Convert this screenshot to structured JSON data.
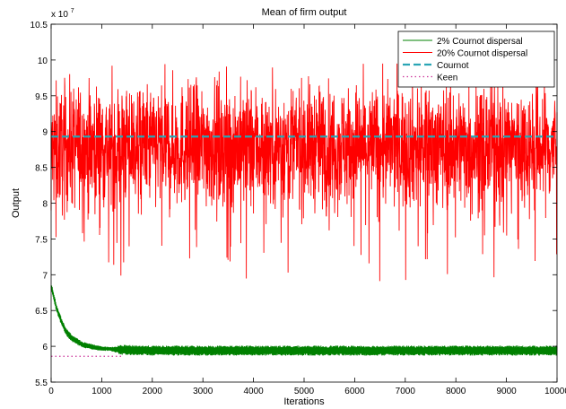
{
  "chart_data": {
    "type": "line",
    "title": "Mean of firm output",
    "xlabel": "Iterations",
    "ylabel": "Output",
    "y_multiplier_label": "x 10",
    "y_multiplier_exponent": "7",
    "xlim": [
      0,
      10000
    ],
    "ylim": [
      5.5,
      10.5
    ],
    "x_ticks": [
      0,
      1000,
      2000,
      3000,
      4000,
      5000,
      6000,
      7000,
      8000,
      9000,
      10000
    ],
    "x_tick_labels": [
      "0",
      "1000",
      "2000",
      "3000",
      "4000",
      "5000",
      "6000",
      "7000",
      "8000",
      "9000",
      "10000"
    ],
    "y_ticks": [
      5.5,
      6,
      6.5,
      7,
      7.5,
      8,
      8.5,
      9,
      9.5,
      10,
      10.5
    ],
    "y_tick_labels": [
      "5.5",
      "6",
      "6.5",
      "7",
      "7.5",
      "8",
      "8.5",
      "9",
      "9.5",
      "10",
      "10.5"
    ],
    "grid": false,
    "legend_position": "top-right",
    "series": [
      {
        "name": "2% Cournot dispersal",
        "color": "#008000",
        "style": "solid",
        "x": [
          0,
          100,
          200,
          300,
          400,
          600,
          800,
          1000,
          1200,
          1400,
          2000,
          4000,
          6000,
          8000,
          10000
        ],
        "values": [
          6.85,
          6.55,
          6.35,
          6.2,
          6.12,
          6.03,
          5.99,
          5.97,
          5.96,
          5.95,
          5.94,
          5.94,
          5.94,
          5.94,
          5.94
        ],
        "band_halfwidth": [
          0.05,
          0.05,
          0.05,
          0.05,
          0.05,
          0.04,
          0.04,
          0.03,
          0.03,
          0.07,
          0.07,
          0.07,
          0.07,
          0.07,
          0.07
        ]
      },
      {
        "name": "20% Cournot dispersal",
        "color": "#ff0000",
        "style": "solid",
        "x": [
          0,
          100,
          500,
          1000,
          2000,
          3000,
          4000,
          5000,
          6000,
          7000,
          8000,
          9000,
          10000
        ],
        "values": [
          8.7,
          8.75,
          8.8,
          8.8,
          8.8,
          8.8,
          8.8,
          8.8,
          8.8,
          8.8,
          8.8,
          8.8,
          8.8
        ],
        "range_min": 6.62,
        "range_max": 9.95
      },
      {
        "name": "Cournot",
        "color": "#2aa5b5",
        "style": "dashed",
        "x": [
          0,
          10000
        ],
        "values": [
          8.93,
          8.93
        ]
      },
      {
        "name": "Keen",
        "color": "#cc3399",
        "style": "dotted",
        "x": [
          0,
          1400
        ],
        "values": [
          5.86,
          5.86
        ]
      }
    ]
  }
}
